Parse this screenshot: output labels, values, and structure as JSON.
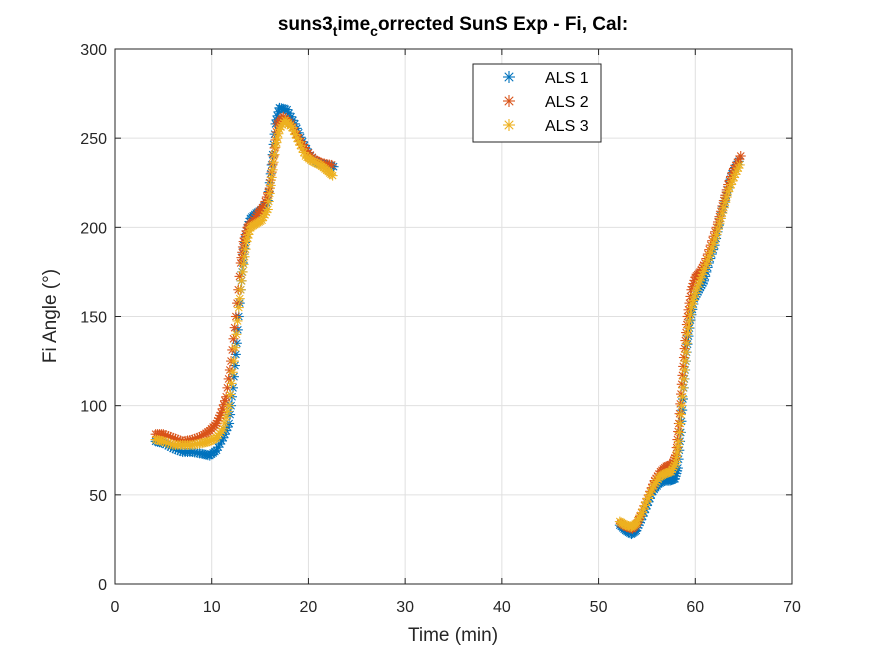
{
  "chart_data": {
    "type": "scatter",
    "marker": "asterisk",
    "title": {
      "main": "suns3",
      "sub1": "t",
      "mid": "ime",
      "sub2": "c",
      "rest": "orrected SunS Exp - Fi, Cal:"
    },
    "xlabel": "Time (min)",
    "ylabel": "Fi Angle (°)",
    "xlim": [
      0,
      70
    ],
    "ylim": [
      0,
      300
    ],
    "xticks": [
      0,
      10,
      20,
      30,
      40,
      50,
      60,
      70
    ],
    "yticks": [
      0,
      50,
      100,
      150,
      200,
      250,
      300
    ],
    "xtick_labels": [
      "0",
      "10",
      "20",
      "30",
      "40",
      "50",
      "60",
      "70"
    ],
    "ytick_labels": [
      "0",
      "50",
      "100",
      "150",
      "200",
      "250",
      "300"
    ],
    "grid": true,
    "legend_position": "top-center",
    "series": [
      {
        "name": "ALS 1",
        "color": "#0072BD",
        "segments": [
          [
            [
              4.2,
              80
            ],
            [
              5,
              79
            ],
            [
              6,
              76
            ],
            [
              7,
              74
            ],
            [
              8,
              74
            ],
            [
              9,
              73
            ],
            [
              9.8,
              72
            ],
            [
              10.5,
              75
            ],
            [
              11.2,
              82
            ],
            [
              11.8,
              90
            ],
            [
              12.2,
              110
            ],
            [
              12.6,
              135
            ],
            [
              13.0,
              165
            ],
            [
              13.3,
              185
            ],
            [
              13.6,
              198
            ],
            [
              14.0,
              205
            ],
            [
              14.6,
              208
            ],
            [
              15.2,
              210
            ],
            [
              15.8,
              215
            ],
            [
              16.2,
              235
            ],
            [
              16.6,
              258
            ],
            [
              17.0,
              267
            ],
            [
              17.8,
              266
            ],
            [
              18.6,
              258
            ],
            [
              19.4,
              248
            ],
            [
              20.2,
              240
            ],
            [
              21.0,
              236
            ],
            [
              21.8,
              235
            ],
            [
              22.6,
              234
            ]
          ],
          [
            [
              52.2,
              33
            ],
            [
              52.8,
              30
            ],
            [
              53.4,
              28
            ],
            [
              53.9,
              30
            ],
            [
              54.4,
              36
            ],
            [
              55.0,
              44
            ],
            [
              55.6,
              52
            ],
            [
              56.2,
              56
            ],
            [
              56.8,
              58
            ],
            [
              57.4,
              58
            ],
            [
              57.9,
              59
            ],
            [
              58.2,
              65
            ],
            [
              58.5,
              85
            ],
            [
              58.8,
              110
            ],
            [
              59.1,
              130
            ],
            [
              59.5,
              148
            ],
            [
              59.9,
              160
            ],
            [
              60.4,
              165
            ],
            [
              60.9,
              170
            ],
            [
              61.4,
              180
            ],
            [
              62.0,
              190
            ],
            [
              62.6,
              205
            ],
            [
              63.2,
              218
            ],
            [
              63.8,
              230
            ],
            [
              64.5,
              237
            ]
          ]
        ]
      },
      {
        "name": "ALS 2",
        "color": "#D95319",
        "segments": [
          [
            [
              4.2,
              84
            ],
            [
              5,
              84
            ],
            [
              6,
              82
            ],
            [
              7,
              80
            ],
            [
              8,
              81
            ],
            [
              9,
              83
            ],
            [
              9.8,
              86
            ],
            [
              10.5,
              90
            ],
            [
              11.0,
              96
            ],
            [
              11.5,
              105
            ],
            [
              12.0,
              125
            ],
            [
              12.5,
              150
            ],
            [
              13.0,
              180
            ],
            [
              13.3,
              192
            ],
            [
              13.7,
              200
            ],
            [
              14.2,
              203
            ],
            [
              14.8,
              208
            ],
            [
              15.4,
              212
            ],
            [
              16.0,
              222
            ],
            [
              16.4,
              240
            ],
            [
              16.8,
              258
            ],
            [
              17.4,
              262
            ],
            [
              18.2,
              258
            ],
            [
              19.0,
              250
            ],
            [
              19.8,
              243
            ],
            [
              20.6,
              238
            ],
            [
              21.4,
              236
            ],
            [
              22.4,
              235
            ]
          ],
          [
            [
              52.3,
              34
            ],
            [
              52.9,
              32
            ],
            [
              53.5,
              31
            ],
            [
              54.0,
              34
            ],
            [
              54.6,
              42
            ],
            [
              55.2,
              50
            ],
            [
              55.8,
              58
            ],
            [
              56.4,
              63
            ],
            [
              57.0,
              66
            ],
            [
              57.6,
              67
            ],
            [
              58.0,
              72
            ],
            [
              58.3,
              90
            ],
            [
              58.6,
              112
            ],
            [
              58.9,
              132
            ],
            [
              59.2,
              150
            ],
            [
              59.6,
              165
            ],
            [
              60.0,
              172
            ],
            [
              60.5,
              175
            ],
            [
              61.0,
              180
            ],
            [
              61.6,
              190
            ],
            [
              62.2,
              200
            ],
            [
              62.8,
              212
            ],
            [
              63.4,
              224
            ],
            [
              64.0,
              233
            ],
            [
              64.7,
              240
            ]
          ]
        ]
      },
      {
        "name": "ALS 3",
        "color": "#EDB120",
        "segments": [
          [
            [
              4.2,
              81
            ],
            [
              5,
              80
            ],
            [
              6,
              78
            ],
            [
              7,
              78
            ],
            [
              8,
              78
            ],
            [
              9,
              79
            ],
            [
              9.8,
              80
            ],
            [
              10.5,
              82
            ],
            [
              11.2,
              87
            ],
            [
              11.8,
              100
            ],
            [
              12.3,
              125
            ],
            [
              12.8,
              155
            ],
            [
              13.2,
              175
            ],
            [
              13.6,
              192
            ],
            [
              14.0,
              200
            ],
            [
              14.6,
              202
            ],
            [
              15.2,
              204
            ],
            [
              15.8,
              210
            ],
            [
              16.2,
              228
            ],
            [
              16.6,
              245
            ],
            [
              17.0,
              255
            ],
            [
              17.6,
              260
            ],
            [
              18.3,
              256
            ],
            [
              19.0,
              248
            ],
            [
              19.7,
              240
            ],
            [
              20.4,
              237
            ],
            [
              21.2,
              235
            ],
            [
              21.9,
              232
            ],
            [
              22.5,
              229
            ]
          ],
          [
            [
              52.2,
              35
            ],
            [
              52.8,
              33
            ],
            [
              53.4,
              32
            ],
            [
              53.9,
              34
            ],
            [
              54.5,
              40
            ],
            [
              55.1,
              48
            ],
            [
              55.7,
              55
            ],
            [
              56.3,
              60
            ],
            [
              56.9,
              62
            ],
            [
              57.5,
              63
            ],
            [
              58.0,
              68
            ],
            [
              58.3,
              80
            ],
            [
              58.6,
              100
            ],
            [
              58.9,
              120
            ],
            [
              59.2,
              140
            ],
            [
              59.6,
              155
            ],
            [
              60.0,
              163
            ],
            [
              60.5,
              170
            ],
            [
              61.0,
              177
            ],
            [
              61.6,
              186
            ],
            [
              62.2,
              196
            ],
            [
              62.8,
              208
            ],
            [
              63.4,
              220
            ],
            [
              64.0,
              228
            ],
            [
              64.6,
              235
            ]
          ]
        ]
      }
    ]
  }
}
